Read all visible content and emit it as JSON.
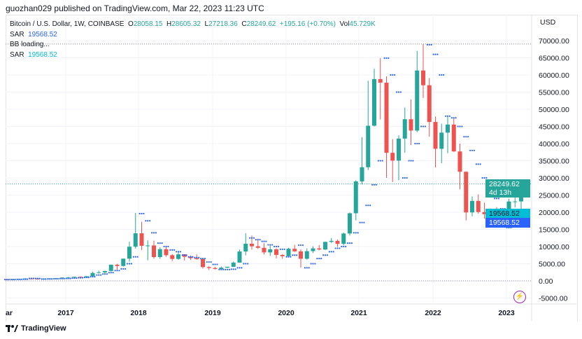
{
  "publisher_line": "guozhan029 published on TradingView.com, Mar 22, 2023 11:23 UTC",
  "legend": {
    "symbol": "Bitcoin / U.S. Dollar, 1W, COINBASE",
    "o_label": "O",
    "o": "28058.15",
    "h_label": "H",
    "h": "28605.32",
    "l_label": "L",
    "l": "27218.36",
    "c_label": "C",
    "c": "28249.62",
    "change": "+195.16 (+0.70%)",
    "vol_label": "Vol",
    "vol": "45.729K",
    "sar1_label": "SAR",
    "sar1": "19568.52",
    "bb": "BB loading...",
    "sar2_label": "SAR",
    "sar2": "19568.52"
  },
  "price_axis": {
    "currency": "USD",
    "ticks": [
      "70000.00",
      "65000.00",
      "60000.00",
      "55000.00",
      "50000.00",
      "45000.00",
      "40000.00",
      "35000.00",
      "30000.00",
      "25000.00",
      "20000.00",
      "15000.00",
      "10000.00",
      "5000.00",
      "0.00",
      "-5000.00"
    ]
  },
  "time_axis": {
    "labels": [
      "ar",
      "2017",
      "2018",
      "2019",
      "2020",
      "2021",
      "2022",
      "2023"
    ]
  },
  "tags": {
    "price": "28249.62",
    "countdown": "4d 13h",
    "sar_cyan": "19568.52",
    "sar_blue": "19568.52"
  },
  "footer": {
    "brand": "TradingView"
  },
  "colors": {
    "up": "#26a69a",
    "down": "#ef5350",
    "sar": "#2962ff",
    "sar2": "#00bcd4"
  },
  "chart_data": {
    "type": "candlestick",
    "interval_shown": "1W",
    "start": "2016-03",
    "note_resolution": "monthly approximation",
    "ohlc": [
      [
        430,
        440,
        400,
        415
      ],
      [
        415,
        460,
        410,
        450
      ],
      [
        450,
        540,
        440,
        530
      ],
      [
        530,
        780,
        520,
        670
      ],
      [
        670,
        680,
        480,
        625
      ],
      [
        625,
        630,
        550,
        575
      ],
      [
        575,
        615,
        570,
        610
      ],
      [
        610,
        720,
        600,
        700
      ],
      [
        700,
        760,
        690,
        745
      ],
      [
        745,
        980,
        740,
        965
      ],
      [
        965,
        1150,
        750,
        970
      ],
      [
        970,
        1220,
        920,
        1190
      ],
      [
        1190,
        1300,
        890,
        1080
      ],
      [
        1080,
        1400,
        1060,
        1350
      ],
      [
        1350,
        2700,
        1350,
        2300
      ],
      [
        2300,
        3000,
        2100,
        2480
      ],
      [
        2480,
        2950,
        1830,
        2875
      ],
      [
        2875,
        4750,
        2700,
        4700
      ],
      [
        4700,
        4980,
        2980,
        4340
      ],
      [
        4340,
        6470,
        4150,
        6470
      ],
      [
        6470,
        11400,
        5550,
        9950
      ],
      [
        9950,
        19800,
        9400,
        13860
      ],
      [
        13860,
        17200,
        9000,
        10220
      ],
      [
        10220,
        11800,
        6000,
        10320
      ],
      [
        10320,
        11700,
        6450,
        6930
      ],
      [
        6930,
        9760,
        6430,
        9240
      ],
      [
        9240,
        9990,
        7050,
        7490
      ],
      [
        7490,
        7780,
        5760,
        6390
      ],
      [
        6390,
        8500,
        6110,
        7730
      ],
      [
        7730,
        7760,
        5880,
        7030
      ],
      [
        7030,
        7400,
        6100,
        6620
      ],
      [
        6620,
        7700,
        6200,
        6320
      ],
      [
        6320,
        6580,
        3560,
        4020
      ],
      [
        4020,
        4300,
        3150,
        3740
      ],
      [
        3740,
        4100,
        3350,
        3460
      ],
      [
        3460,
        4200,
        3380,
        3850
      ],
      [
        3850,
        4130,
        3730,
        4100
      ],
      [
        4100,
        5650,
        4070,
        5320
      ],
      [
        5320,
        9100,
        5300,
        8560
      ],
      [
        8560,
        13880,
        7440,
        10820
      ],
      [
        10820,
        13190,
        9100,
        10080
      ],
      [
        10080,
        12300,
        9320,
        9630
      ],
      [
        9630,
        10950,
        7710,
        8290
      ],
      [
        8290,
        10500,
        7300,
        9200
      ],
      [
        9200,
        9500,
        6520,
        7570
      ],
      [
        7570,
        7750,
        6430,
        7190
      ],
      [
        7190,
        9580,
        6870,
        9350
      ],
      [
        9350,
        10500,
        8450,
        8600
      ],
      [
        8600,
        9190,
        3850,
        6440
      ],
      [
        6440,
        9470,
        6150,
        8660
      ],
      [
        8660,
        10080,
        8100,
        9460
      ],
      [
        9460,
        10430,
        8900,
        9140
      ],
      [
        9140,
        11450,
        8990,
        11350
      ],
      [
        11350,
        12480,
        10990,
        11660
      ],
      [
        11660,
        12060,
        9880,
        10780
      ],
      [
        10780,
        14080,
        10380,
        13800
      ],
      [
        13800,
        19900,
        13200,
        19700
      ],
      [
        19700,
        29300,
        17600,
        28990
      ],
      [
        28990,
        41900,
        28100,
        33110
      ],
      [
        33110,
        58300,
        32300,
        45200
      ],
      [
        45200,
        61800,
        45000,
        58800
      ],
      [
        58800,
        64900,
        47000,
        57750
      ],
      [
        57750,
        59600,
        30000,
        37300
      ],
      [
        37300,
        41300,
        28800,
        35040
      ],
      [
        35040,
        42400,
        29300,
        41460
      ],
      [
        41460,
        50500,
        37300,
        47100
      ],
      [
        47100,
        52900,
        39600,
        43790
      ],
      [
        43790,
        67000,
        43300,
        61300
      ],
      [
        61300,
        69000,
        53300,
        57000
      ],
      [
        57000,
        59100,
        42000,
        46300
      ],
      [
        46300,
        47900,
        33000,
        38480
      ],
      [
        38480,
        45800,
        34300,
        43190
      ],
      [
        43190,
        48100,
        37200,
        45540
      ],
      [
        45540,
        47400,
        37600,
        37710
      ],
      [
        37710,
        40000,
        26700,
        31790
      ],
      [
        31790,
        31900,
        17600,
        19940
      ],
      [
        19940,
        24600,
        18800,
        23300
      ],
      [
        23300,
        25200,
        19600,
        20050
      ],
      [
        20050,
        22800,
        18100,
        19430
      ],
      [
        19430,
        21100,
        18200,
        20490
      ],
      [
        20490,
        21480,
        15500,
        17170
      ],
      [
        17170,
        18400,
        16300,
        16550
      ],
      [
        16550,
        23900,
        16500,
        23130
      ],
      [
        23130,
        25250,
        21400,
        23150
      ],
      [
        23150,
        28605.32,
        19600,
        28249.62
      ]
    ],
    "sar": [
      380,
      400,
      430,
      480,
      720,
      700,
      540,
      560,
      600,
      650,
      700,
      800,
      900,
      1000,
      1200,
      1700,
      2000,
      2400,
      3000,
      3500,
      5000,
      7000,
      19600,
      17500,
      14000,
      11000,
      10000,
      9000,
      8500,
      7500,
      7000,
      6800,
      6500,
      5500,
      4800,
      3300,
      3300,
      3400,
      3800,
      5000,
      12500,
      12000,
      11500,
      10500,
      10000,
      9200,
      7000,
      7500,
      10400,
      3800,
      5000,
      6500,
      7500,
      8500,
      9500,
      10000,
      11000,
      14000,
      17000,
      22000,
      28000,
      35000,
      64900,
      60000,
      55000,
      30000,
      35000,
      40000,
      45000,
      68800,
      66000,
      60000,
      48000,
      47500,
      45000,
      42000,
      38000,
      34000,
      30000,
      27000,
      24000,
      21000,
      15500,
      17000,
      19568.52
    ],
    "ylim": [
      -5000,
      70000
    ]
  }
}
